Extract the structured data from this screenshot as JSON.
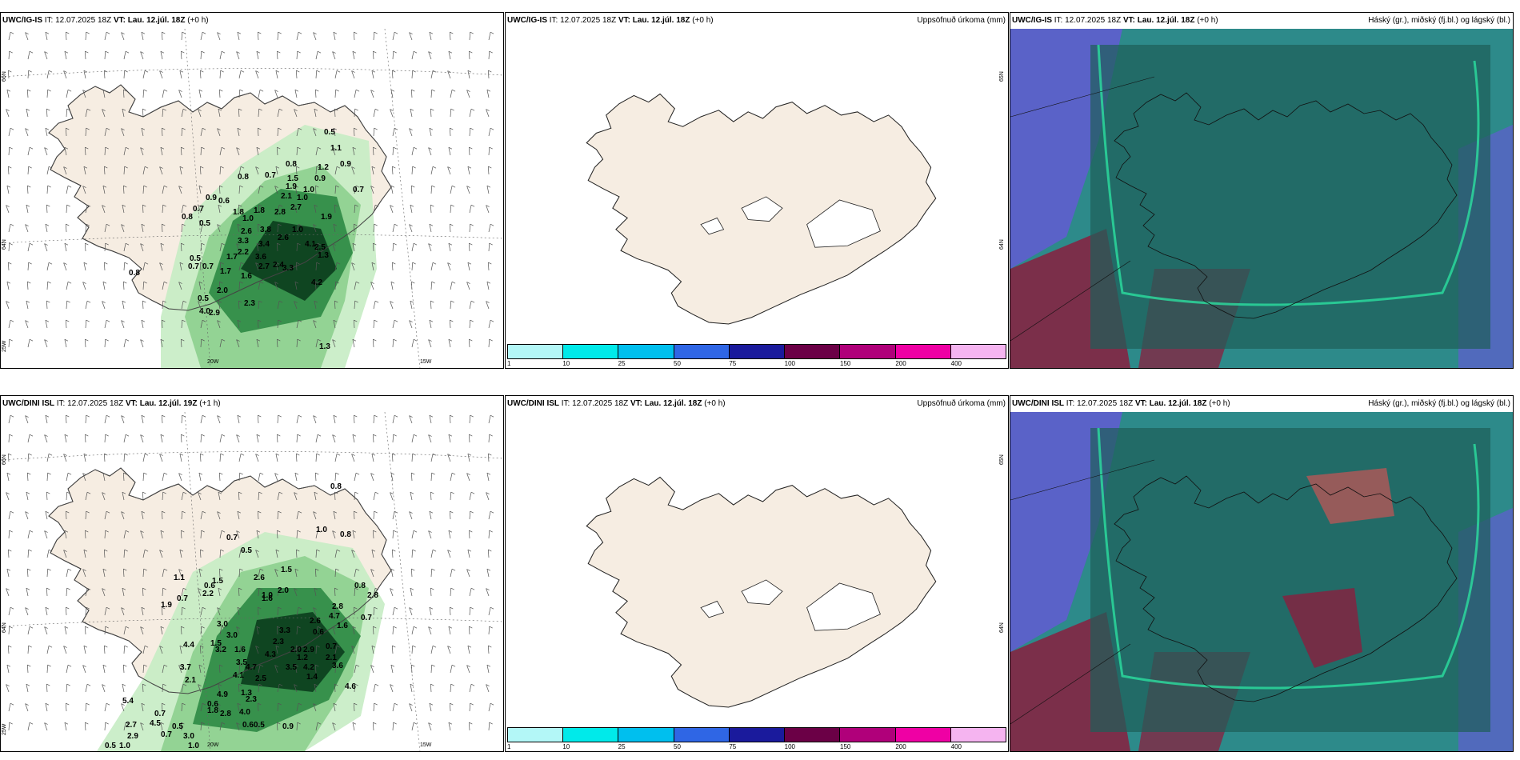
{
  "colors": {
    "land": "#f6ede2",
    "land_dark": "#eadcc9",
    "precip_light": "#c6ecc4",
    "precip_mid": "#8dcf8e",
    "precip_dark": "#2d8a44",
    "precip_darkest": "#0b3d1d",
    "cloud_teal": "#2d8a8a",
    "cloud_dark": "#1e5e58",
    "cloud_blue": "#5a62c8",
    "cloud_red": "#8a1f3e"
  },
  "rows": [
    {
      "panels": [
        {
          "model": "UWC/IG-IS",
          "it_label": "IT:",
          "it_value": "12.07.2025 18Z",
          "vt_label": "VT: Lau. 12.júl. 18Z",
          "lead": "(+0 h)",
          "title_right": "",
          "lon_labels": [
            "20W",
            "15W"
          ],
          "lat_labels": [
            "66N",
            "64N",
            "25W"
          ],
          "values": [
            "0.5",
            "1.1",
            "0.8",
            "0.7",
            "0.8",
            "1.2",
            "0.9",
            "1.5",
            "1.9",
            "1.0",
            "0.9",
            "0.7",
            "2.1",
            "2.7",
            "1.0",
            "0.9",
            "0.6",
            "0.7",
            "1.8",
            "2.8",
            "1.8",
            "1.0",
            "0.5",
            "2.6",
            "1.9",
            "0.8",
            "3.3",
            "3.4",
            "4.1",
            "1.0",
            "2.6",
            "3.8",
            "2.5",
            "0.5",
            "1.7",
            "2.2",
            "3.6",
            "2.4",
            "0.7",
            "0.7",
            "2.7",
            "3.3",
            "1.3",
            "1.6",
            "1.7",
            "4.2",
            "2.0",
            "0.5",
            "2.3",
            "4.0",
            "2.9",
            "1.3",
            "0.8"
          ]
        },
        {
          "model": "UWC/IG-IS",
          "it_label": "IT:",
          "it_value": "12.07.2025 18Z",
          "vt_label": "VT: Lau. 12.júl. 18Z",
          "lead": "(+0 h)",
          "title_right": "Uppsöfnuð úrkoma (mm)",
          "lon_labels": [],
          "lat_labels": [
            "65N",
            "64N"
          ],
          "colorbar": {
            "colors": [
              "#b3f7f7",
              "#00eaea",
              "#00bfee",
              "#2f66e5",
              "#1a1a9c",
              "#6b0046",
              "#b0007a",
              "#ef00a4",
              "#f5b4f0"
            ],
            "ticks": [
              "1",
              "10",
              "25",
              "50",
              "75",
              "100",
              "150",
              "200",
              "400"
            ]
          }
        },
        {
          "model": "UWC/IG-IS",
          "it_label": "IT:",
          "it_value": "12.07.2025 18Z",
          "vt_label": "VT: Lau. 12.júl. 18Z",
          "lead": "(+0 h)",
          "title_right": "Háský (gr.), miðský (fj.bl.) og lágský (bl.)"
        }
      ]
    },
    {
      "panels": [
        {
          "model": "UWC/DINI ISL",
          "it_label": "IT:",
          "it_value": "12.07.2025 18Z",
          "vt_label": "VT: Lau. 12.júl. 19Z",
          "lead": "(+1 h)",
          "title_right": "",
          "lon_labels": [
            "20W",
            "15W"
          ],
          "lat_labels": [
            "66N",
            "64N",
            "25W"
          ],
          "values": [
            "0.7",
            "0.5",
            "0.8",
            "1.0",
            "0.8",
            "1.5",
            "0.7",
            "0.6",
            "1.1",
            "2.2",
            "1.5",
            "2.6",
            "2.0",
            "1.0",
            "0.8",
            "1.9",
            "3.0",
            "1.6",
            "2.8",
            "4.7",
            "2.8",
            "0.7",
            "1.6",
            "4.4",
            "1.5",
            "3.0",
            "2.3",
            "3.3",
            "2.6",
            "0.6",
            "1.6",
            "3.7",
            "3.2",
            "3.5",
            "4.3",
            "2.0",
            "0.7",
            "2.9",
            "2.1",
            "4.1",
            "4.7",
            "3.5",
            "1.2",
            "2.5",
            "2.1",
            "3.6",
            "5.4",
            "4.9",
            "1.3",
            "4.2",
            "1.4",
            "2.3",
            "2.8",
            "1.8",
            "4.6",
            "4.5",
            "0.5",
            "0.6",
            "4.0",
            "3.0",
            "1.0",
            "0.5",
            "2.9",
            "0.7",
            "1.0",
            "0.7",
            "0.60.5",
            "0.9",
            "2.7"
          ]
        },
        {
          "model": "UWC/DINI ISL",
          "it_label": "IT:",
          "it_value": "12.07.2025 18Z",
          "vt_label": "VT: Lau. 12.júl. 18Z",
          "lead": "(+0 h)",
          "title_right": "Uppsöfnuð úrkoma (mm)",
          "lon_labels": [],
          "lat_labels": [
            "65N",
            "64N"
          ],
          "colorbar": {
            "colors": [
              "#b3f7f7",
              "#00eaea",
              "#00bfee",
              "#2f66e5",
              "#1a1a9c",
              "#6b0046",
              "#b0007a",
              "#ef00a4",
              "#f5b4f0"
            ],
            "ticks": [
              "1",
              "10",
              "25",
              "50",
              "75",
              "100",
              "150",
              "200",
              "400"
            ]
          }
        },
        {
          "model": "UWC/DINI ISL",
          "it_label": "IT:",
          "it_value": "12.07.2025 18Z",
          "vt_label": "VT: Lau. 12.júl. 18Z",
          "lead": "(+0 h)",
          "title_right": "Háský (gr.), miðský (fj.bl.) og lágský (bl.)"
        }
      ]
    }
  ]
}
